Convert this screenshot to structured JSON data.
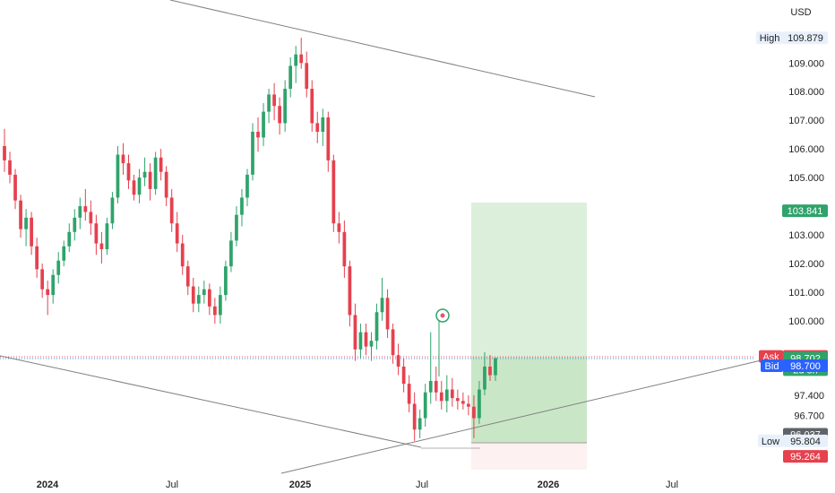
{
  "chart_data": {
    "type": "candlestick",
    "currency": "USD",
    "ylim": [
      94.8,
      111.2
    ],
    "y_ticks": [
      "109.000",
      "108.000",
      "107.000",
      "106.000",
      "105.000",
      "103.000",
      "102.000",
      "101.000",
      "100.000",
      "97.400",
      "96.700"
    ],
    "y_tick_values": [
      109.0,
      108.0,
      107.0,
      106.0,
      105.0,
      103.0,
      102.0,
      101.0,
      100.0,
      97.4,
      96.7
    ],
    "x_ticks": [
      {
        "label": "2024",
        "bold": true
      },
      {
        "label": "Jul",
        "bold": false
      },
      {
        "label": "2025",
        "bold": true
      },
      {
        "label": "Jul",
        "bold": false
      },
      {
        "label": "2026",
        "bold": true
      },
      {
        "label": "Jul",
        "bold": false
      }
    ],
    "price_badges": {
      "high": {
        "label": "High",
        "value": "109.879",
        "y": 109.879
      },
      "target": {
        "value": "103.841",
        "y": 103.841
      },
      "ask": {
        "label": "Ask",
        "value": "98.754",
        "y": 98.754
      },
      "last": {
        "value": "98.702",
        "sub": "2d 8h",
        "y": 98.702
      },
      "bid": {
        "label": "Bid",
        "value": "98.700",
        "y": 98.7
      },
      "stop": {
        "value": "96.037",
        "y": 96.037
      },
      "low": {
        "label": "Low",
        "value": "95.804",
        "y": 95.804
      },
      "floor": {
        "value": "95.264",
        "y": 95.264
      }
    },
    "ohlc": [
      [
        106.1,
        106.7,
        105.2,
        105.6
      ],
      [
        105.6,
        105.9,
        104.8,
        105.1
      ],
      [
        105.1,
        105.3,
        103.9,
        104.2
      ],
      [
        104.2,
        104.4,
        102.9,
        103.2
      ],
      [
        103.2,
        103.9,
        102.6,
        103.6
      ],
      [
        103.6,
        103.8,
        102.3,
        102.6
      ],
      [
        102.6,
        102.9,
        101.5,
        101.8
      ],
      [
        101.8,
        102.0,
        100.8,
        101.1
      ],
      [
        101.1,
        101.4,
        100.2,
        100.9
      ],
      [
        100.9,
        101.8,
        100.6,
        101.6
      ],
      [
        101.6,
        102.4,
        101.3,
        102.1
      ],
      [
        102.1,
        102.8,
        101.9,
        102.6
      ],
      [
        102.6,
        103.4,
        102.4,
        103.1
      ],
      [
        103.1,
        103.9,
        102.8,
        103.6
      ],
      [
        103.6,
        104.3,
        103.2,
        104.0
      ],
      [
        104.0,
        104.6,
        103.5,
        103.8
      ],
      [
        103.8,
        104.2,
        103.0,
        103.4
      ],
      [
        103.4,
        103.7,
        102.3,
        102.7
      ],
      [
        102.7,
        103.1,
        102.0,
        102.5
      ],
      [
        102.5,
        103.6,
        102.3,
        103.4
      ],
      [
        103.4,
        104.5,
        103.2,
        104.3
      ],
      [
        104.3,
        106.1,
        104.1,
        105.8
      ],
      [
        105.8,
        106.2,
        105.1,
        105.5
      ],
      [
        105.5,
        105.8,
        104.6,
        104.9
      ],
      [
        104.9,
        105.1,
        104.2,
        104.4
      ],
      [
        104.4,
        105.3,
        104.1,
        105.0
      ],
      [
        105.0,
        105.7,
        104.7,
        105.2
      ],
      [
        105.2,
        105.5,
        104.2,
        104.6
      ],
      [
        104.6,
        105.9,
        104.4,
        105.7
      ],
      [
        105.7,
        106.0,
        104.9,
        105.2
      ],
      [
        105.2,
        105.4,
        104.0,
        104.3
      ],
      [
        104.3,
        104.6,
        103.1,
        103.4
      ],
      [
        103.4,
        103.8,
        102.4,
        102.7
      ],
      [
        102.7,
        103.0,
        101.6,
        101.9
      ],
      [
        101.9,
        102.1,
        100.9,
        101.2
      ],
      [
        101.2,
        101.5,
        100.3,
        100.6
      ],
      [
        100.6,
        101.2,
        100.3,
        100.9
      ],
      [
        100.9,
        101.4,
        100.6,
        101.1
      ],
      [
        101.1,
        101.3,
        100.2,
        100.5
      ],
      [
        100.5,
        100.8,
        99.9,
        100.2
      ],
      [
        100.2,
        101.2,
        99.9,
        100.9
      ],
      [
        100.9,
        102.1,
        100.7,
        101.9
      ],
      [
        101.9,
        103.1,
        101.7,
        102.8
      ],
      [
        102.8,
        104.0,
        102.6,
        103.7
      ],
      [
        103.7,
        104.6,
        103.3,
        104.3
      ],
      [
        104.3,
        105.3,
        104.0,
        105.1
      ],
      [
        105.1,
        106.9,
        104.9,
        106.6
      ],
      [
        106.6,
        107.1,
        105.9,
        106.4
      ],
      [
        106.4,
        107.6,
        106.1,
        107.3
      ],
      [
        107.3,
        108.1,
        106.9,
        107.9
      ],
      [
        107.9,
        108.3,
        107.0,
        107.5
      ],
      [
        107.5,
        107.8,
        106.5,
        106.9
      ],
      [
        106.9,
        108.4,
        106.6,
        108.1
      ],
      [
        108.1,
        109.2,
        107.8,
        108.9
      ],
      [
        108.9,
        109.6,
        108.3,
        109.3
      ],
      [
        109.3,
        109.879,
        108.8,
        109.0
      ],
      [
        109.0,
        109.4,
        107.8,
        108.1
      ],
      [
        108.1,
        108.4,
        106.6,
        106.9
      ],
      [
        106.9,
        107.3,
        106.2,
        106.6
      ],
      [
        106.6,
        107.4,
        106.1,
        107.1
      ],
      [
        107.1,
        107.3,
        105.2,
        105.6
      ],
      [
        105.6,
        105.8,
        103.1,
        103.4
      ],
      [
        103.4,
        103.8,
        102.7,
        103.1
      ],
      [
        103.1,
        103.5,
        101.5,
        101.9
      ],
      [
        101.9,
        102.1,
        99.8,
        100.2
      ],
      [
        100.2,
        100.6,
        98.6,
        99.0
      ],
      [
        99.0,
        99.9,
        98.7,
        99.6
      ],
      [
        99.6,
        99.9,
        98.8,
        99.1
      ],
      [
        99.1,
        99.6,
        98.6,
        99.3
      ],
      [
        99.3,
        100.6,
        99.0,
        100.3
      ],
      [
        100.3,
        101.5,
        100.0,
        100.8
      ],
      [
        100.8,
        101.1,
        99.4,
        99.7
      ],
      [
        99.7,
        99.9,
        98.5,
        98.8
      ],
      [
        98.8,
        99.2,
        98.1,
        98.4
      ],
      [
        98.4,
        98.7,
        97.5,
        97.8
      ],
      [
        97.8,
        98.1,
        96.8,
        97.1
      ],
      [
        97.1,
        97.5,
        95.804,
        96.2
      ],
      [
        96.2,
        96.9,
        95.9,
        96.6
      ],
      [
        96.6,
        97.8,
        96.3,
        97.5
      ],
      [
        97.5,
        99.6,
        97.1,
        97.9
      ],
      [
        97.9,
        98.4,
        97.2,
        97.5
      ],
      [
        97.5,
        97.9,
        96.9,
        97.2
      ],
      [
        97.2,
        98.1,
        96.8,
        97.6
      ],
      [
        97.6,
        98.0,
        97.0,
        97.3
      ],
      [
        97.3,
        97.6,
        96.9,
        97.2
      ],
      [
        97.2,
        97.5,
        96.9,
        97.1
      ],
      [
        97.1,
        97.4,
        96.7,
        97.0
      ],
      [
        97.0,
        97.4,
        95.9,
        96.6
      ],
      [
        96.6,
        97.9,
        96.4,
        97.6
      ],
      [
        97.6,
        98.9,
        97.4,
        98.4
      ],
      [
        98.4,
        98.8,
        97.9,
        98.1
      ],
      [
        98.1,
        98.7,
        97.9,
        98.702
      ]
    ]
  }
}
